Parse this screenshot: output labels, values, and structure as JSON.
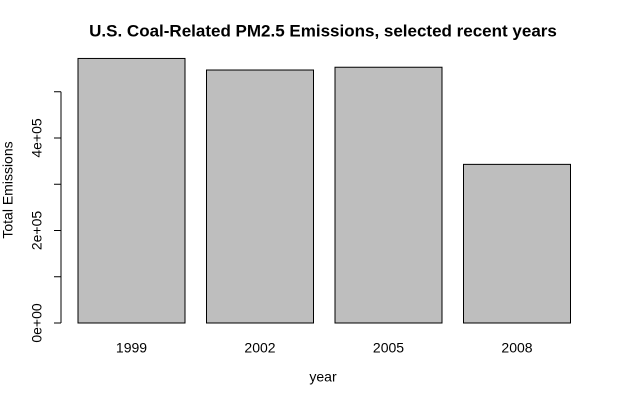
{
  "chart_data": {
    "type": "bar",
    "title": "U.S. Coal-Related PM2.5 Emissions, selected recent years",
    "x_label": "year",
    "y_label": "Total Emissions",
    "categories": [
      "1999",
      "2002",
      "2005",
      "2008"
    ],
    "values": [
      572000,
      547000,
      553000,
      343000
    ],
    "color": "#bebebe",
    "ylim": [
      0,
      600000
    ],
    "yticks": [
      {
        "value": 0,
        "label": "0e+00"
      },
      {
        "value": 200000,
        "label": "2e+05"
      },
      {
        "value": 400000,
        "label": "4e+05"
      }
    ],
    "yticks_minor": [
      100000,
      300000,
      500000
    ]
  }
}
